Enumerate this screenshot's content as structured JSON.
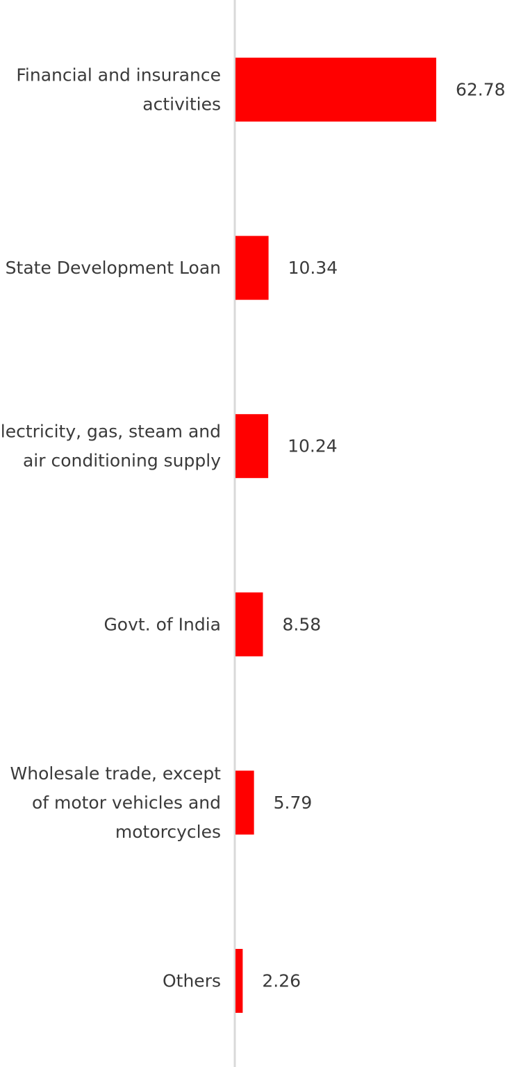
{
  "chart_data": {
    "type": "bar",
    "orientation": "horizontal",
    "categories": [
      "Financial and insurance activities",
      "State Development Loan",
      "Electricity, gas, steam and air conditioning supply",
      "Govt. of India",
      "Wholesale trade, except of motor vehicles and motorcycles",
      "Others"
    ],
    "category_lines": [
      [
        "Financial and insurance",
        "activities"
      ],
      [
        "State Development Loan"
      ],
      [
        "Electricity, gas, steam and",
        "air conditioning supply"
      ],
      [
        "Govt. of India"
      ],
      [
        "Wholesale trade, except",
        "of motor vehicles and",
        "motorcycles"
      ],
      [
        "Others"
      ]
    ],
    "values": [
      62.78,
      10.34,
      10.24,
      8.58,
      5.79,
      2.26
    ],
    "value_labels": [
      "62.78",
      "10.34",
      "10.24",
      "8.58",
      "5.79",
      "2.26"
    ],
    "title": "",
    "xlabel": "",
    "ylabel": "",
    "xlim": [
      0,
      62.78
    ],
    "grid": false,
    "legend": "none",
    "bar_color": "#ff0000",
    "axis_color": "#d9d9d9",
    "text_color": "#3a3a3a"
  }
}
